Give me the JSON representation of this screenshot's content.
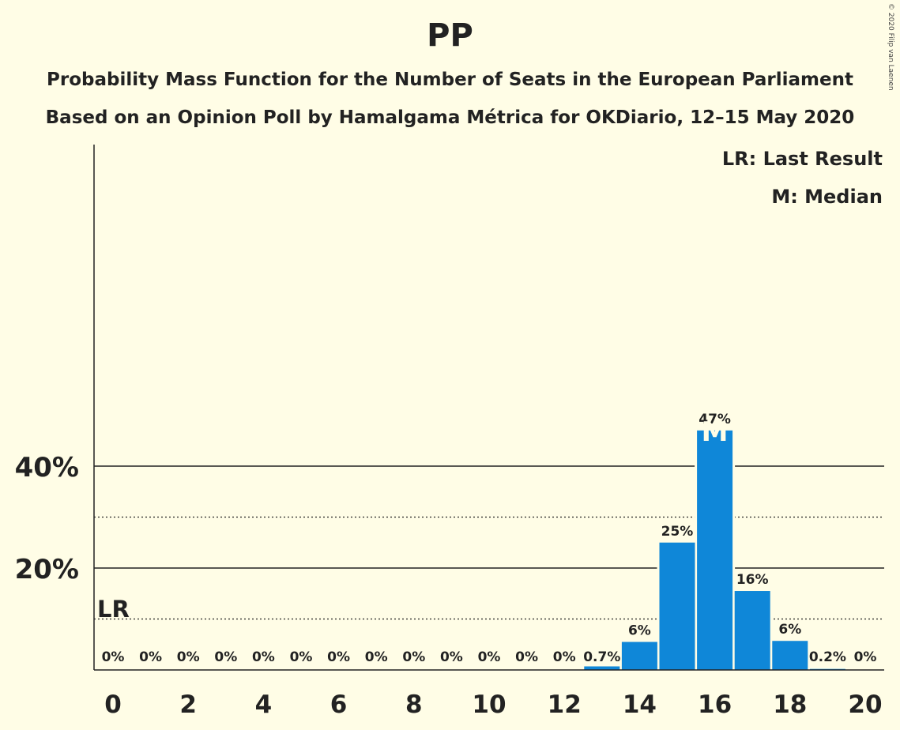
{
  "title": "PP",
  "subtitle1": "Probability Mass Function for the Number of Seats in the European Parliament",
  "subtitle2": "Based on an Opinion Poll by Hamalgama Métrica for OKDiario, 12–15 May 2020",
  "credit": "© 2020 Filip van Laenen",
  "legend": {
    "lr": "LR: Last Result",
    "m": "M: Median"
  },
  "markers": {
    "lr_label": "LR",
    "median_label": "M"
  },
  "chart_data": {
    "type": "bar",
    "categories": [
      0,
      1,
      2,
      3,
      4,
      5,
      6,
      7,
      8,
      9,
      10,
      11,
      12,
      13,
      14,
      15,
      16,
      17,
      18,
      19,
      20
    ],
    "values": [
      0,
      0,
      0,
      0,
      0,
      0,
      0,
      0,
      0,
      0,
      0,
      0,
      0,
      0.7,
      5.5,
      25,
      47,
      15.5,
      5.7,
      0.2,
      0
    ],
    "data_labels": [
      "0%",
      "0%",
      "0%",
      "0%",
      "0%",
      "0%",
      "0%",
      "0%",
      "0%",
      "0%",
      "0%",
      "0%",
      "0%",
      "0.7%",
      "6%",
      "25%",
      "47%",
      "16%",
      "6%",
      "0.2%",
      "0%"
    ],
    "x_ticks": [
      0,
      2,
      4,
      6,
      8,
      10,
      12,
      14,
      16,
      18,
      20
    ],
    "y_ticks": [
      {
        "value": 20,
        "label": "20%"
      },
      {
        "value": 40,
        "label": "40%"
      }
    ],
    "y_minor_gridlines": [
      10,
      30
    ],
    "ylim": [
      0,
      51.5
    ],
    "last_result": 0,
    "median": 16,
    "bar_color": "#0f87d8",
    "legend_position": "top-right"
  }
}
